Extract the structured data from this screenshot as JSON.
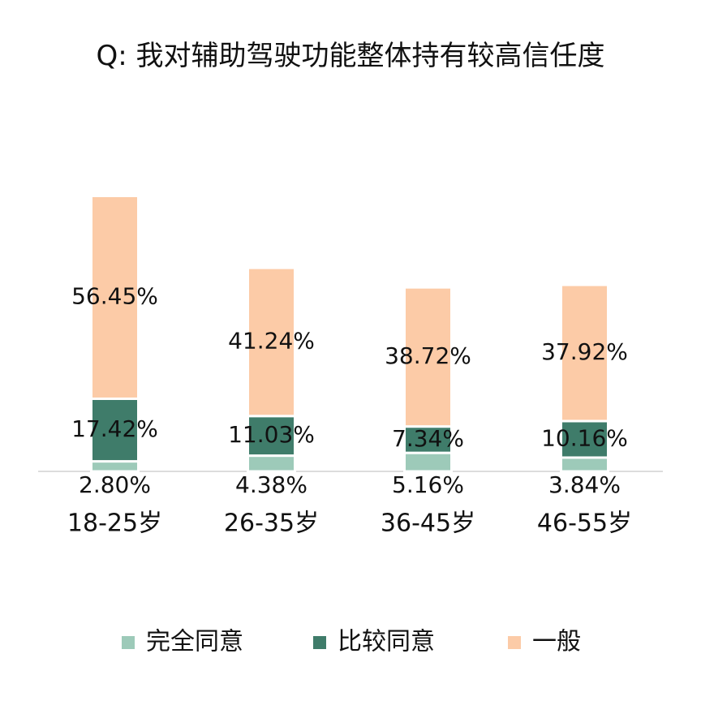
{
  "chart_data": {
    "type": "stacked-bar",
    "title": "Q:   我对辅助驾驶功能整体持有较高信任度",
    "categories": [
      "18-25岁",
      "26-35岁",
      "36-45岁",
      "46-55岁"
    ],
    "series": [
      {
        "name": "完全同意",
        "color": "#9dcab9",
        "values": [
          2.8,
          4.38,
          5.16,
          3.84
        ],
        "value_labels": [
          "2.80%",
          "4.38%",
          "5.16%",
          "3.84%"
        ]
      },
      {
        "name": "比较同意",
        "color": "#3f7c6a",
        "values": [
          17.42,
          11.03,
          7.34,
          10.16
        ],
        "value_labels": [
          "17.42%",
          "11.03%",
          "7.34%",
          "10.16%"
        ]
      },
      {
        "name": "一般",
        "color": "#fccba7",
        "values": [
          56.45,
          41.24,
          38.72,
          37.92
        ],
        "value_labels": [
          "56.45%",
          "41.24%",
          "38.72%",
          "37.92%"
        ]
      }
    ],
    "ylim": [
      0,
      77
    ]
  }
}
